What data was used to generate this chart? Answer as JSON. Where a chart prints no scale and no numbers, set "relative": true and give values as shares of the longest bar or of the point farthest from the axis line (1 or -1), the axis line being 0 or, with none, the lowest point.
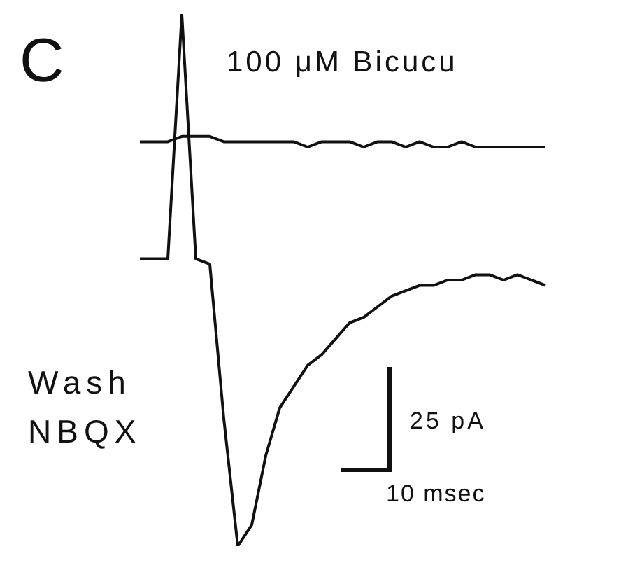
{
  "chart_data": {
    "type": "line",
    "relative": true,
    "categories": [
      null,
      null,
      null,
      null,
      null,
      null,
      null,
      null,
      null,
      null,
      null,
      null,
      null,
      null,
      null,
      null,
      null,
      null,
      null,
      null,
      null,
      null,
      null,
      null,
      null,
      null,
      null,
      null,
      null,
      null
    ],
    "series": [
      {
        "color": "#111111",
        "values": [
          0.76,
          0.76,
          0.76,
          0.77,
          0.77,
          0.77,
          0.76,
          0.76,
          0.76,
          0.76,
          0.76,
          0.76,
          0.75,
          0.76,
          0.76,
          0.76,
          0.75,
          0.76,
          0.76,
          0.75,
          0.76,
          0.75,
          0.75,
          0.76,
          0.75,
          0.75,
          0.75,
          0.75,
          0.75,
          0.75
        ]
      },
      {
        "color": "#111111",
        "values": [
          0.54,
          0.54,
          0.54,
          1.0,
          0.54,
          0.53,
          0.24,
          0,
          0.04,
          0.17,
          0.26,
          0.3,
          0.34,
          0.36,
          0.39,
          0.42,
          0.43,
          0.45,
          0.47,
          0.48,
          0.49,
          0.49,
          0.5,
          0.5,
          0.51,
          0.51,
          0.5,
          0.51,
          0.5,
          0.49
        ]
      }
    ],
    "annotations": [
      "C",
      "100 μM Bicucu",
      "Wash",
      "NBQX",
      "25 pA",
      "10 msec"
    ]
  }
}
